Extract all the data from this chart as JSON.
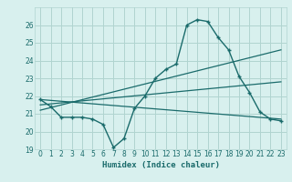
{
  "xlabel": "Humidex (Indice chaleur)",
  "background_color": "#d8f0ee",
  "grid_color": "#b0d4d0",
  "line_color": "#1a6b6b",
  "xlim": [
    -0.5,
    23.5
  ],
  "ylim": [
    19,
    27
  ],
  "xticks": [
    0,
    1,
    2,
    3,
    4,
    5,
    6,
    7,
    8,
    9,
    10,
    11,
    12,
    13,
    14,
    15,
    16,
    17,
    18,
    19,
    20,
    21,
    22,
    23
  ],
  "yticks": [
    19,
    20,
    21,
    22,
    23,
    24,
    25,
    26
  ],
  "series1_x": [
    0,
    1,
    2,
    3,
    4,
    5,
    6,
    7,
    8,
    9,
    10,
    11,
    12,
    13,
    14,
    15,
    16,
    17,
    18,
    19,
    20,
    21,
    22,
    23
  ],
  "series1_y": [
    21.8,
    21.4,
    20.8,
    20.8,
    20.8,
    20.7,
    20.4,
    19.1,
    19.6,
    21.3,
    22.0,
    23.0,
    23.5,
    23.8,
    26.0,
    26.3,
    26.2,
    25.3,
    24.6,
    23.1,
    22.2,
    21.1,
    20.7,
    20.6
  ],
  "series2_x": [
    0,
    23
  ],
  "series2_y": [
    21.8,
    20.7
  ],
  "series3_x": [
    0,
    23
  ],
  "series3_y": [
    21.5,
    22.8
  ],
  "series4_x": [
    0,
    23
  ],
  "series4_y": [
    21.2,
    24.6
  ]
}
